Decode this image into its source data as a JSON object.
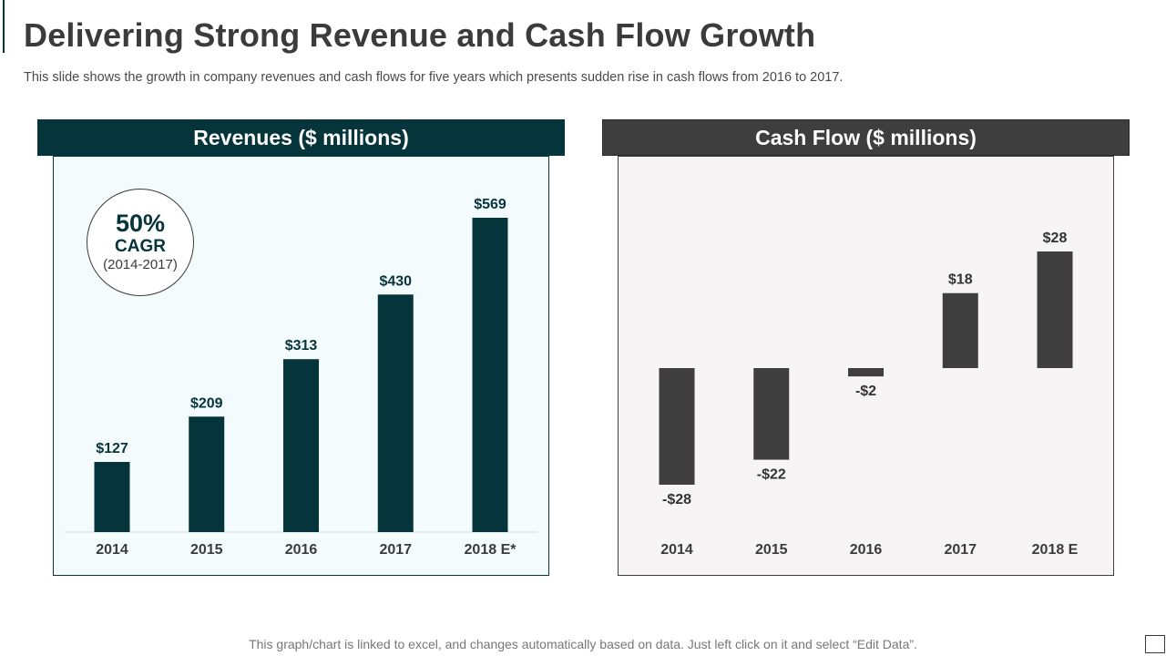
{
  "title": "Delivering Strong Revenue and Cash Flow Growth",
  "subtitle": "This slide shows the growth in company revenues and cash flows for five years which presents sudden rise in cash flows from 2016 to 2017.",
  "footer": "This graph/chart is linked to excel, and changes automatically based on data. Just left click on it and select “Edit Data”.",
  "cagr": {
    "value": "50%",
    "label": "CAGR",
    "range": "(2014-2017)"
  },
  "colors": {
    "revenue": "#05343a",
    "cash_flow": "#3f3e3e"
  },
  "chart_data": [
    {
      "type": "bar",
      "title": "Revenues ($ millions)",
      "categories": [
        "2014",
        "2015",
        "2016",
        "2017",
        "2018 E*"
      ],
      "values": [
        127,
        209,
        313,
        430,
        569
      ],
      "data_labels": [
        "$127",
        "$209",
        "$313",
        "$430",
        "$569"
      ],
      "ylim": [
        0,
        569
      ],
      "grid": false
    },
    {
      "type": "bar",
      "title": "Cash Flow ($ millions)",
      "categories": [
        "2014",
        "2015",
        "2016",
        "2017",
        "2018 E"
      ],
      "values": [
        -28,
        -22,
        -2,
        18,
        28
      ],
      "data_labels": [
        "-$28",
        "-$22",
        "-$2",
        "$18",
        "$28"
      ],
      "ylim": [
        -28,
        28
      ],
      "grid": false
    }
  ]
}
